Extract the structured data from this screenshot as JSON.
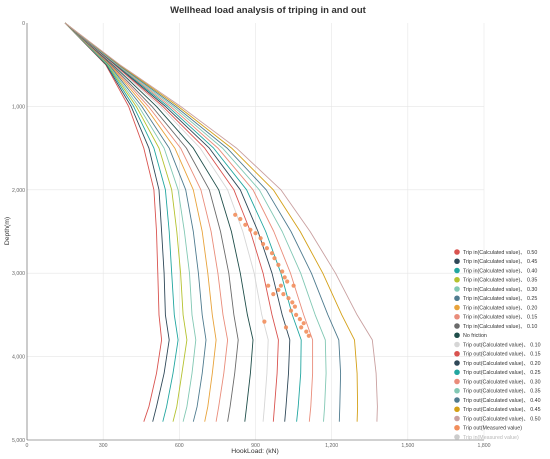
{
  "chart_data": {
    "type": "line",
    "title": "Wellhead load analysis of triping in and out",
    "xlabel": "HookLoad: (kN)",
    "ylabel": "Depth(m)",
    "xlim": [
      0,
      1800
    ],
    "ylim": [
      0,
      5000
    ],
    "y_inverted": true,
    "grid": true,
    "legend_position": "right-bottom",
    "xticks": [
      "0",
      "300",
      "600",
      "900",
      "1,200",
      "1,500",
      "1,800"
    ],
    "yticks": [
      "0",
      "1,000",
      "2,000",
      "3,000",
      "4,000",
      "5,000"
    ],
    "depths": [
      0,
      500,
      1000,
      1500,
      2000,
      2500,
      3000,
      3500,
      3800,
      4200,
      4600,
      4780
    ],
    "series": [
      {
        "name": "Trip in(Calculated value)、 0.50",
        "color": "#d9534f",
        "values": [
          150,
          310,
          400,
          460,
          500,
          510,
          515,
          520,
          530,
          510,
          480,
          460
        ]
      },
      {
        "name": "Trip in(Calculated value)、 0.45",
        "color": "#2f4858",
        "values": [
          150,
          312,
          410,
          480,
          520,
          530,
          540,
          545,
          560,
          540,
          510,
          495
        ]
      },
      {
        "name": "Trip in(Calculated value)、 0.40",
        "color": "#22a6a0",
        "values": [
          150,
          315,
          420,
          500,
          545,
          560,
          570,
          580,
          595,
          575,
          550,
          535
        ]
      },
      {
        "name": "Trip in(Calculated value)、 0.35",
        "color": "#b5c22f",
        "values": [
          150,
          318,
          430,
          520,
          570,
          590,
          605,
          615,
          630,
          610,
          590,
          575
        ]
      },
      {
        "name": "Trip in(Calculated value)、 0.30",
        "color": "#82c8b4",
        "values": [
          150,
          320,
          440,
          540,
          595,
          620,
          640,
          650,
          665,
          650,
          630,
          615
        ]
      },
      {
        "name": "Trip in(Calculated value)、 0.25",
        "color": "#4f7b8f",
        "values": [
          150,
          323,
          452,
          560,
          625,
          655,
          675,
          690,
          705,
          690,
          670,
          655
        ]
      },
      {
        "name": "Trip in(Calculated value)、 0.20",
        "color": "#e8a33b",
        "values": [
          150,
          326,
          465,
          582,
          655,
          690,
          712,
          730,
          745,
          730,
          712,
          700
        ]
      },
      {
        "name": "Trip in(Calculated value)、 0.15",
        "color": "#e98c7a",
        "values": [
          150,
          329,
          478,
          605,
          685,
          725,
          752,
          772,
          790,
          775,
          755,
          745
        ]
      },
      {
        "name": "Trip in(Calculated value)、 0.10",
        "color": "#6b6b6b",
        "values": [
          150,
          332,
          492,
          628,
          718,
          762,
          795,
          815,
          832,
          818,
          800,
          790
        ]
      },
      {
        "name": "No friction",
        "color": "#1f4e4a",
        "values": [
          150,
          338,
          510,
          655,
          755,
          805,
          840,
          868,
          890,
          880,
          865,
          858
        ]
      },
      {
        "name": "Trip out(Calculated value)、 0.10",
        "color": "#d6d6d6",
        "values": [
          150,
          342,
          525,
          682,
          790,
          850,
          895,
          925,
          950,
          945,
          935,
          930
        ]
      },
      {
        "name": "Trip out(Calculated value)、 0.15",
        "color": "#d9534f",
        "values": [
          150,
          345,
          535,
          700,
          815,
          880,
          930,
          965,
          990,
          985,
          975,
          970
        ]
      },
      {
        "name": "Trip out(Calculated value)、 0.20",
        "color": "#2f4858",
        "values": [
          150,
          348,
          545,
          718,
          840,
          910,
          965,
          1005,
          1035,
          1030,
          1020,
          1015
        ]
      },
      {
        "name": "Trip out(Calculated value)、 0.25",
        "color": "#22a6a0",
        "values": [
          150,
          351,
          555,
          735,
          865,
          940,
          1000,
          1045,
          1080,
          1078,
          1068,
          1062
        ]
      },
      {
        "name": "Trip out(Calculated value)、 0.30",
        "color": "#e98c7a",
        "values": [
          150,
          354,
          565,
          752,
          890,
          972,
          1038,
          1090,
          1125,
          1125,
          1118,
          1112
        ]
      },
      {
        "name": "Trip out(Calculated value)、 0.35",
        "color": "#82c8b4",
        "values": [
          150,
          357,
          575,
          770,
          915,
          1005,
          1078,
          1135,
          1175,
          1178,
          1172,
          1168
        ]
      },
      {
        "name": "Trip out(Calculated value)、 0.40",
        "color": "#4f7b8f",
        "values": [
          150,
          360,
          585,
          788,
          942,
          1040,
          1120,
          1185,
          1228,
          1235,
          1232,
          1230
        ]
      },
      {
        "name": "Trip out(Calculated value)、 0.45",
        "color": "#d4a017",
        "values": [
          150,
          363,
          595,
          806,
          970,
          1076,
          1165,
          1240,
          1290,
          1300,
          1302,
          1300
        ]
      },
      {
        "name": "Trip out(Calculated value)、 0.50",
        "color": "#c9a0a0",
        "values": [
          150,
          366,
          605,
          825,
          1000,
          1115,
          1215,
          1300,
          1360,
          1375,
          1380,
          1378
        ]
      }
    ],
    "scatter_series": [
      {
        "name": "Trip out(Measured value)",
        "color": "#f28e5c",
        "points": [
          [
            820,
            2300
          ],
          [
            840,
            2350
          ],
          [
            860,
            2420
          ],
          [
            880,
            2480
          ],
          [
            900,
            2520
          ],
          [
            920,
            2580
          ],
          [
            930,
            2650
          ],
          [
            945,
            2700
          ],
          [
            965,
            2760
          ],
          [
            975,
            2820
          ],
          [
            990,
            2900
          ],
          [
            1005,
            2980
          ],
          [
            1015,
            3050
          ],
          [
            1025,
            3100
          ],
          [
            1000,
            3150
          ],
          [
            990,
            3200
          ],
          [
            1010,
            3250
          ],
          [
            1030,
            3300
          ],
          [
            1045,
            3350
          ],
          [
            1055,
            3400
          ],
          [
            1040,
            3450
          ],
          [
            1060,
            3500
          ],
          [
            1075,
            3550
          ],
          [
            1090,
            3600
          ],
          [
            1080,
            3650
          ],
          [
            1100,
            3700
          ],
          [
            1110,
            3750
          ],
          [
            950,
            3150
          ],
          [
            970,
            3250
          ],
          [
            935,
            3580
          ],
          [
            1020,
            3650
          ],
          [
            1050,
            3150
          ]
        ]
      },
      {
        "name": "Trip in(Measured value)",
        "color": "#cccccc",
        "hidden": true,
        "points": []
      }
    ]
  }
}
